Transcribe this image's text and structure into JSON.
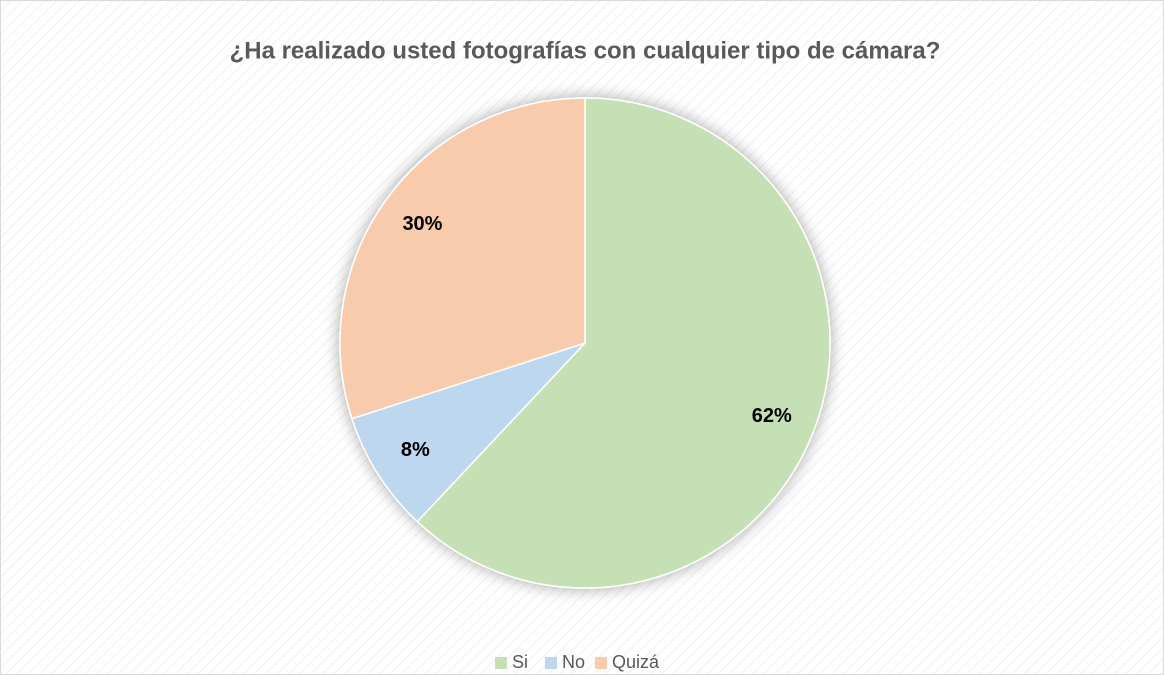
{
  "chart_data": {
    "type": "pie",
    "title": "¿Ha realizado usted fotografías con cualquier tipo de cámara?",
    "categories": [
      "Si",
      "No",
      "Quizá"
    ],
    "values": [
      62,
      8,
      30
    ],
    "value_labels": [
      "62%",
      "8%",
      "30%"
    ],
    "colors": [
      "#c5e0b4",
      "#bdd7ee",
      "#f8cbad"
    ],
    "legend": "bottom"
  }
}
